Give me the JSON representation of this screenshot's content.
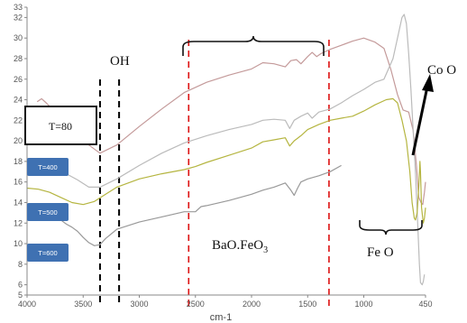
{
  "chart_data": {
    "type": "line",
    "xlabel": "cm-1",
    "x_reversed": true,
    "xlim": [
      4000,
      450
    ],
    "ylim": [
      5,
      33
    ],
    "x_ticks": [
      "4000",
      "3500",
      "3000",
      "2500",
      "2000",
      "1500",
      "1000",
      "450"
    ],
    "x_tick_values": [
      4000,
      3500,
      3000,
      2500,
      2000,
      1500,
      1000,
      450
    ],
    "y_ticks": [
      "33",
      "32",
      "30",
      "28",
      "26",
      "24",
      "22",
      "20",
      "18",
      "16",
      "14",
      "12",
      "10",
      "8",
      "6",
      "5"
    ],
    "y_tick_values": [
      33,
      32,
      30,
      28,
      26,
      24,
      22,
      20,
      18,
      16,
      14,
      12,
      10,
      8,
      6,
      5
    ],
    "series": [
      {
        "name": "T=80",
        "color": "#c49a9a",
        "points": [
          [
            3910,
            23.8
          ],
          [
            3870,
            24.1
          ],
          [
            3830,
            23.7
          ],
          [
            3600,
            21.2
          ],
          [
            3450,
            19.6
          ],
          [
            3350,
            18.8
          ],
          [
            3200,
            19.6
          ],
          [
            3000,
            21.4
          ],
          [
            2800,
            23.1
          ],
          [
            2600,
            24.7
          ],
          [
            2400,
            25.7
          ],
          [
            2200,
            26.4
          ],
          [
            2000,
            27.0
          ],
          [
            1900,
            27.6
          ],
          [
            1800,
            27.5
          ],
          [
            1700,
            27.2
          ],
          [
            1650,
            27.8
          ],
          [
            1600,
            27.9
          ],
          [
            1560,
            27.5
          ],
          [
            1500,
            28.2
          ],
          [
            1460,
            28.6
          ],
          [
            1420,
            28.2
          ],
          [
            1380,
            28.5
          ],
          [
            1300,
            28.9
          ],
          [
            1200,
            29.3
          ],
          [
            1100,
            29.7
          ],
          [
            1000,
            30.0
          ],
          [
            900,
            29.6
          ],
          [
            820,
            29.0
          ],
          [
            760,
            27.0
          ],
          [
            700,
            24.5
          ],
          [
            650,
            23.0
          ],
          [
            600,
            22.8
          ],
          [
            560,
            21.0
          ],
          [
            530,
            17.5
          ],
          [
            510,
            14.5
          ],
          [
            490,
            14.0
          ],
          [
            475,
            13.8
          ],
          [
            460,
            15.0
          ],
          [
            450,
            16.0
          ]
        ]
      },
      {
        "name": "T=400",
        "color": "#bbbbbb",
        "points": [
          [
            3650,
            16.8
          ],
          [
            3550,
            16.2
          ],
          [
            3450,
            15.5
          ],
          [
            3350,
            15.5
          ],
          [
            3200,
            16.3
          ],
          [
            3000,
            17.6
          ],
          [
            2800,
            18.8
          ],
          [
            2600,
            19.8
          ],
          [
            2400,
            20.5
          ],
          [
            2200,
            21.1
          ],
          [
            2000,
            21.6
          ],
          [
            1900,
            22.0
          ],
          [
            1800,
            22.1
          ],
          [
            1700,
            22.0
          ],
          [
            1660,
            21.2
          ],
          [
            1620,
            22.0
          ],
          [
            1560,
            22.4
          ],
          [
            1500,
            22.7
          ],
          [
            1460,
            22.2
          ],
          [
            1400,
            22.8
          ],
          [
            1300,
            23.1
          ],
          [
            1200,
            23.7
          ],
          [
            1100,
            24.4
          ],
          [
            1000,
            25.0
          ],
          [
            900,
            25.7
          ],
          [
            820,
            26.0
          ],
          [
            780,
            27.0
          ],
          [
            740,
            28.0
          ],
          [
            700,
            30.0
          ],
          [
            680,
            31.0
          ],
          [
            660,
            32.0
          ],
          [
            640,
            32.3
          ],
          [
            620,
            31.4
          ],
          [
            600,
            28.5
          ],
          [
            580,
            25.0
          ],
          [
            560,
            21.0
          ],
          [
            540,
            17.0
          ],
          [
            520,
            12.0
          ],
          [
            505,
            8.0
          ],
          [
            495,
            6.2
          ],
          [
            480,
            6.0
          ],
          [
            470,
            6.3
          ],
          [
            460,
            7.0
          ]
        ]
      },
      {
        "name": "T=500",
        "color": "#b5b540",
        "points": [
          [
            4000,
            15.4
          ],
          [
            3900,
            15.3
          ],
          [
            3800,
            15.0
          ],
          [
            3700,
            14.5
          ],
          [
            3600,
            14.0
          ],
          [
            3500,
            13.8
          ],
          [
            3400,
            14.1
          ],
          [
            3300,
            14.8
          ],
          [
            3200,
            15.5
          ],
          [
            3000,
            16.3
          ],
          [
            2800,
            16.8
          ],
          [
            2600,
            17.2
          ],
          [
            2500,
            17.5
          ],
          [
            2400,
            17.9
          ],
          [
            2200,
            18.6
          ],
          [
            2000,
            19.3
          ],
          [
            1900,
            19.9
          ],
          [
            1800,
            20.1
          ],
          [
            1700,
            20.3
          ],
          [
            1660,
            19.5
          ],
          [
            1620,
            20.0
          ],
          [
            1560,
            20.5
          ],
          [
            1500,
            21.1
          ],
          [
            1400,
            21.6
          ],
          [
            1300,
            22.0
          ],
          [
            1200,
            22.2
          ],
          [
            1100,
            22.4
          ],
          [
            1000,
            22.9
          ],
          [
            900,
            23.5
          ],
          [
            800,
            24.0
          ],
          [
            740,
            24.1
          ],
          [
            700,
            23.7
          ],
          [
            660,
            22.0
          ],
          [
            620,
            20.0
          ],
          [
            590,
            17.0
          ],
          [
            570,
            14.0
          ],
          [
            550,
            12.5
          ],
          [
            540,
            12.3
          ],
          [
            525,
            13.0
          ],
          [
            510,
            15.5
          ],
          [
            500,
            18.0
          ],
          [
            495,
            17.0
          ],
          [
            485,
            13.5
          ],
          [
            470,
            12.0
          ],
          [
            460,
            12.5
          ],
          [
            450,
            13.5
          ]
        ]
      },
      {
        "name": "T=600",
        "color": "#999999",
        "points": [
          [
            3700,
            12.3
          ],
          [
            3650,
            11.9
          ],
          [
            3600,
            11.6
          ],
          [
            3550,
            11.2
          ],
          [
            3500,
            10.6
          ],
          [
            3450,
            10.1
          ],
          [
            3400,
            9.8
          ],
          [
            3350,
            9.9
          ],
          [
            3300,
            10.5
          ],
          [
            3200,
            11.4
          ],
          [
            3000,
            12.1
          ],
          [
            2800,
            12.6
          ],
          [
            2600,
            13.1
          ],
          [
            2500,
            13.1
          ],
          [
            2450,
            13.6
          ],
          [
            2400,
            13.7
          ],
          [
            2200,
            14.2
          ],
          [
            2000,
            14.8
          ],
          [
            1900,
            15.2
          ],
          [
            1800,
            15.5
          ],
          [
            1700,
            15.9
          ],
          [
            1650,
            15.2
          ],
          [
            1620,
            14.7
          ],
          [
            1590,
            15.4
          ],
          [
            1560,
            16.0
          ],
          [
            1500,
            16.3
          ],
          [
            1400,
            16.6
          ],
          [
            1300,
            17.0
          ],
          [
            1200,
            17.6
          ]
        ]
      }
    ],
    "annotations": {
      "oh": "OH",
      "t80": "T=80",
      "t400": "T=400",
      "t500": "T=500",
      "t600": "T=600",
      "co": "Co O",
      "bao": "BaO.FeO",
      "bao_sub": "3",
      "feo": "Fe O"
    },
    "marker_lines": {
      "black_dashed_x": [
        3350,
        3180
      ],
      "red_dashed_x": [
        2560,
        1310
      ]
    },
    "colors": {
      "legend_box": "#3f71b2",
      "red_marker": "#dd1111",
      "axis": "#888888"
    }
  }
}
